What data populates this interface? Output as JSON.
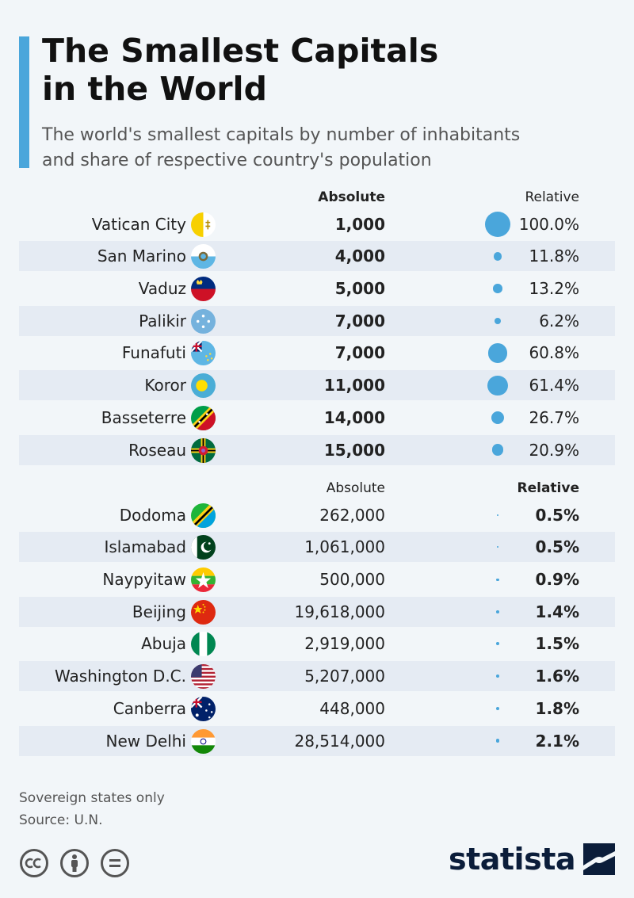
{
  "title_lines": [
    "The Smallest Capitals",
    "in the World"
  ],
  "subtitle_lines": [
    "The world's smallest capitals by number of inhabitants",
    "and share of respective country's population"
  ],
  "colors": {
    "accent": "#4aa6db",
    "row_alt": "#e5ebf3",
    "background": "#f2f6f9",
    "brand": "#0b1d3a"
  },
  "chart_data": {
    "type": "table",
    "max_relative": 100.0,
    "sections": [
      {
        "header_absolute": "Absolute",
        "header_relative": "Relative",
        "emphasis": "absolute",
        "rows": [
          {
            "city": "Vatican City",
            "flag": "vatican-flag-icon",
            "absolute": "1,000",
            "relative_pct": 100.0,
            "relative": "100.0%"
          },
          {
            "city": "San Marino",
            "flag": "san-marino-flag-icon",
            "absolute": "4,000",
            "relative_pct": 11.8,
            "relative": "11.8%"
          },
          {
            "city": "Vaduz",
            "flag": "liechtenstein-flag-icon",
            "absolute": "5,000",
            "relative_pct": 13.2,
            "relative": "13.2%"
          },
          {
            "city": "Palikir",
            "flag": "micronesia-flag-icon",
            "absolute": "7,000",
            "relative_pct": 6.2,
            "relative": "6.2%"
          },
          {
            "city": "Funafuti",
            "flag": "tuvalu-flag-icon",
            "absolute": "7,000",
            "relative_pct": 60.8,
            "relative": "60.8%"
          },
          {
            "city": "Koror",
            "flag": "palau-flag-icon",
            "absolute": "11,000",
            "relative_pct": 61.4,
            "relative": "61.4%"
          },
          {
            "city": "Basseterre",
            "flag": "st-kitts-nevis-flag-icon",
            "absolute": "14,000",
            "relative_pct": 26.7,
            "relative": "26.7%"
          },
          {
            "city": "Roseau",
            "flag": "dominica-flag-icon",
            "absolute": "15,000",
            "relative_pct": 20.9,
            "relative": "20.9%"
          }
        ]
      },
      {
        "header_absolute": "Absolute",
        "header_relative": "Relative",
        "emphasis": "relative",
        "rows": [
          {
            "city": "Dodoma",
            "flag": "tanzania-flag-icon",
            "absolute": "262,000",
            "relative_pct": 0.5,
            "relative": "0.5%"
          },
          {
            "city": "Islamabad",
            "flag": "pakistan-flag-icon",
            "absolute": "1,061,000",
            "relative_pct": 0.5,
            "relative": "0.5%"
          },
          {
            "city": "Naypyitaw",
            "flag": "myanmar-flag-icon",
            "absolute": "500,000",
            "relative_pct": 0.9,
            "relative": "0.9%"
          },
          {
            "city": "Beijing",
            "flag": "china-flag-icon",
            "absolute": "19,618,000",
            "relative_pct": 1.4,
            "relative": "1.4%"
          },
          {
            "city": "Abuja",
            "flag": "nigeria-flag-icon",
            "absolute": "2,919,000",
            "relative_pct": 1.5,
            "relative": "1.5%"
          },
          {
            "city": "Washington D.C.",
            "flag": "usa-flag-icon",
            "absolute": "5,207,000",
            "relative_pct": 1.6,
            "relative": "1.6%"
          },
          {
            "city": "Canberra",
            "flag": "australia-flag-icon",
            "absolute": "448,000",
            "relative_pct": 1.8,
            "relative": "1.8%"
          },
          {
            "city": "New Delhi",
            "flag": "india-flag-icon",
            "absolute": "28,514,000",
            "relative_pct": 2.1,
            "relative": "2.1%"
          }
        ]
      }
    ]
  },
  "footer": {
    "note": "Sovereign states only",
    "source": "Source: U.N."
  },
  "license_icons": [
    "cc-icon",
    "by-person-icon",
    "nd-equals-icon"
  ],
  "brand": {
    "name": "statista",
    "logo_icon": "statista-logo-icon"
  }
}
